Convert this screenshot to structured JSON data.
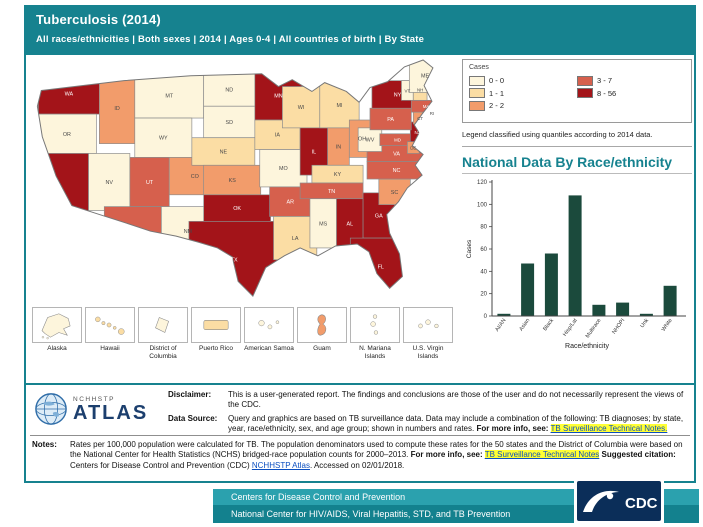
{
  "header": {
    "title": "Tuberculosis (2014)",
    "filters": "All races/ethnicities | Both sexes | 2014 | Ages 0-4 | All countries of birth | By State"
  },
  "legend": {
    "title": "Cases",
    "note": "Legend classified using quantiles according to 2014 data.",
    "classes": [
      {
        "label": "0 - 0",
        "color": "#FDF5DC"
      },
      {
        "label": "1 - 1",
        "color": "#FBDDA4"
      },
      {
        "label": "2 - 2",
        "color": "#F29C6B"
      },
      {
        "label": "3 - 7",
        "color": "#D6604D"
      },
      {
        "label": "8 - 56",
        "color": "#A31419"
      }
    ]
  },
  "map": {
    "states": [
      {
        "abbr": "WA",
        "class": 4
      },
      {
        "abbr": "OR",
        "class": 0
      },
      {
        "abbr": "CA",
        "class": 4
      },
      {
        "abbr": "NV",
        "class": 0
      },
      {
        "abbr": "ID",
        "class": 2
      },
      {
        "abbr": "MT",
        "class": 0
      },
      {
        "abbr": "WY",
        "class": 0
      },
      {
        "abbr": "UT",
        "class": 3
      },
      {
        "abbr": "AZ",
        "class": 3
      },
      {
        "abbr": "CO",
        "class": 2
      },
      {
        "abbr": "NM",
        "class": 0
      },
      {
        "abbr": "ND",
        "class": 0
      },
      {
        "abbr": "SD",
        "class": 0
      },
      {
        "abbr": "NE",
        "class": 1
      },
      {
        "abbr": "KS",
        "class": 2
      },
      {
        "abbr": "OK",
        "class": 4
      },
      {
        "abbr": "TX",
        "class": 4
      },
      {
        "abbr": "MN",
        "class": 4
      },
      {
        "abbr": "IA",
        "class": 1
      },
      {
        "abbr": "MO",
        "class": 0
      },
      {
        "abbr": "AR",
        "class": 3
      },
      {
        "abbr": "LA",
        "class": 1
      },
      {
        "abbr": "WI",
        "class": 1
      },
      {
        "abbr": "IL",
        "class": 4
      },
      {
        "abbr": "MI",
        "class": 1
      },
      {
        "abbr": "IN",
        "class": 2
      },
      {
        "abbr": "OH",
        "class": 2
      },
      {
        "abbr": "KY",
        "class": 1
      },
      {
        "abbr": "TN",
        "class": 3
      },
      {
        "abbr": "MS",
        "class": 0
      },
      {
        "abbr": "AL",
        "class": 4
      },
      {
        "abbr": "GA",
        "class": 4
      },
      {
        "abbr": "FL",
        "class": 4
      },
      {
        "abbr": "SC",
        "class": 2
      },
      {
        "abbr": "NC",
        "class": 3
      },
      {
        "abbr": "VA",
        "class": 3
      },
      {
        "abbr": "WV",
        "class": 0
      },
      {
        "abbr": "MD",
        "class": 3
      },
      {
        "abbr": "DE",
        "class": 2
      },
      {
        "abbr": "NJ",
        "class": 4
      },
      {
        "abbr": "PA",
        "class": 3
      },
      {
        "abbr": "NY",
        "class": 4
      },
      {
        "abbr": "CT",
        "class": 2
      },
      {
        "abbr": "RI",
        "class": 2
      },
      {
        "abbr": "MA",
        "class": 3
      },
      {
        "abbr": "VT",
        "class": 0
      },
      {
        "abbr": "NH",
        "class": 1
      },
      {
        "abbr": "ME",
        "class": 0
      }
    ],
    "insets": [
      {
        "name": "Alaska",
        "class": 0
      },
      {
        "name": "Hawaii",
        "class": 1
      },
      {
        "name": "District of Columbia",
        "class": 0
      },
      {
        "name": "Puerto Rico",
        "class": 1
      },
      {
        "name": "American Samoa",
        "class": 0
      },
      {
        "name": "Guam",
        "class": 2
      },
      {
        "name": "N. Mariana Islands",
        "class": 0
      },
      {
        "name": "U.S. Virgin Islands",
        "class": 0
      }
    ]
  },
  "chart_data": {
    "type": "bar",
    "title": "National Data By Race/ethnicity",
    "categories": [
      "AI/AN",
      "Asian",
      "Black",
      "Hisp/Lat",
      "Multirace",
      "NHOPI",
      "Unk",
      "White"
    ],
    "values": [
      2,
      47,
      56,
      108,
      10,
      12,
      2,
      27
    ],
    "xlabel": "Race/ethnicity",
    "ylabel": "Cases",
    "ylim": [
      0,
      120
    ],
    "yticks": [
      0,
      20,
      40,
      60,
      80,
      100,
      120
    ],
    "bar_color": "#1B4A3C",
    "grid": false,
    "legend_position": "none"
  },
  "footer": {
    "logo_small": "NCHHSTP",
    "logo_large": "ATLAS",
    "disclaimer": {
      "label": "Disclaimer:",
      "text": "This is a user-generated report. The findings and conclusions are those of the user and do not necessarily represent the views of the CDC."
    },
    "data_source": {
      "label": "Data Source:",
      "text": "Query and graphics are based on TB surveillance data. Data may include a combination of the following: TB diagnoses; by state, year, race/ethnicity, sex, and age group; shown in numbers and rates.",
      "more_info": "For more info, see:",
      "link": "TB Surveillance Technical Notes."
    },
    "notes": {
      "label": "Notes:",
      "text": "Rates per 100,000 population were calculated for TB. The population denominators used to compute these rates for the 50 states and the District of Columbia were based on the National Center for Health Statistics (NCHS) bridged-race population counts for 2000–2013.",
      "more_info": "For more info, see:",
      "link": "TB Surveillance Technical Notes",
      "citation_label": "Suggested citation:",
      "citation_text": "Centers for Disease Control and Prevention (CDC)",
      "citation_link": "NCHHSTP Atlas",
      "citation_tail": ". Accessed on 02/01/2018."
    }
  },
  "bottom": {
    "line1": "Centers for Disease Control and Prevention",
    "line2": "National Center for HIV/AIDS, Viral Hepatitis, STD, and TB Prevention",
    "cdc_label": "CDC"
  }
}
